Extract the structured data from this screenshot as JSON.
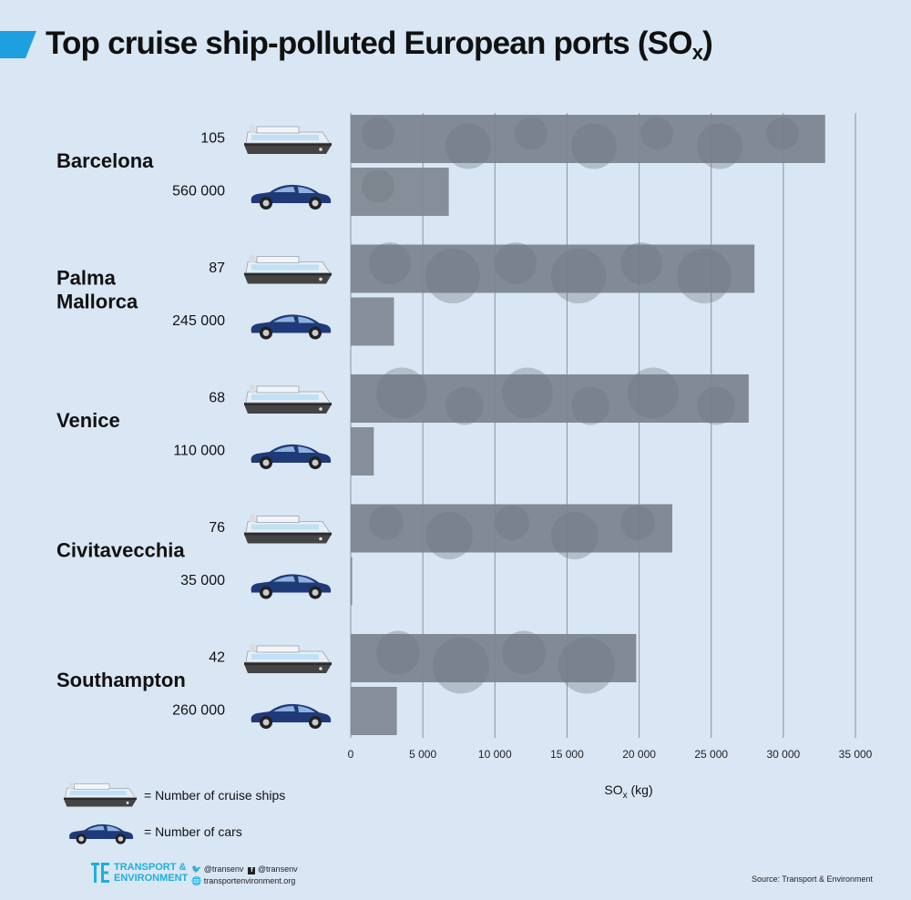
{
  "header": {
    "title": "Top cruise ship-polluted European ports (SO",
    "title_sub": "x",
    "title_suffix": ")",
    "accent_color": "#1ea0e0"
  },
  "chart_data": {
    "type": "bar",
    "orientation": "horizontal",
    "title": "Top cruise ship-polluted European ports (SOx)",
    "xlabel": "SO",
    "xlabel_sub": "x",
    "xlabel_suffix": " (kg)",
    "xlim": [
      0,
      35000
    ],
    "xticks": [
      0,
      5000,
      10000,
      15000,
      20000,
      25000,
      30000,
      35000
    ],
    "xtick_labels": [
      "0",
      "5 000",
      "10 000",
      "15 000",
      "20 000",
      "25 000",
      "30 000",
      "35 000"
    ],
    "grid": true,
    "categories": [
      "Barcelona",
      "Palma Mallorca",
      "Venice",
      "Civitavecchia",
      "Southampton"
    ],
    "series": [
      {
        "name": "cruise ships",
        "counts": [
          "105",
          "87",
          "68",
          "76",
          "42"
        ],
        "values": [
          32900,
          28000,
          27600,
          22300,
          19800
        ]
      },
      {
        "name": "cars",
        "counts": [
          "560 000",
          "245 000",
          "110 000",
          "35 000",
          "260 000"
        ],
        "values": [
          6800,
          3000,
          1600,
          100,
          3200
        ]
      }
    ]
  },
  "legend": {
    "ships_label": "= Number of cruise ships",
    "cars_label": "= Number of cars"
  },
  "footer": {
    "org_line1": "TRANSPORT &",
    "org_line2": "ENVIRONMENT",
    "twitter": "@transenv",
    "facebook": "@transenv",
    "website": "transportenvironment.org",
    "source": "Source: Transport & Environment"
  },
  "colors": {
    "background": "#d9e6f4",
    "bar": "#7d8590",
    "car": "#1f3a78",
    "ship_hull": "#444444",
    "ship_deck": "#cfe3f5",
    "logo": "#1eb0d8"
  },
  "icons": {
    "ship": "cruise-ship-icon",
    "car": "car-icon"
  }
}
